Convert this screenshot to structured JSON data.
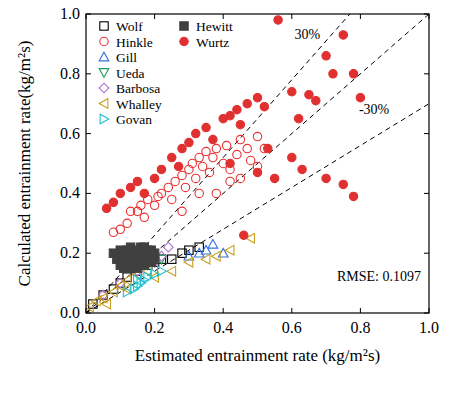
{
  "chart_data": {
    "type": "scatter",
    "x_label": "Estimated entrainment rate (kg/m²s)",
    "y_label": "Calculated entrainment rate(kg/m²s)",
    "xlim": [
      0,
      1
    ],
    "ylim": [
      0,
      1
    ],
    "xticks": [
      {
        "value": 0,
        "label": "0.0"
      },
      {
        "value": 0.2,
        "label": "0.2"
      },
      {
        "value": 0.4,
        "label": "0.4"
      },
      {
        "value": 0.6,
        "label": "0.6"
      },
      {
        "value": 0.8,
        "label": "0.8"
      },
      {
        "value": 1,
        "label": "1.0"
      }
    ],
    "yticks": [
      {
        "value": 0,
        "label": "0.0"
      },
      {
        "value": 0.2,
        "label": "0.2"
      },
      {
        "value": 0.4,
        "label": "0.4"
      },
      {
        "value": 0.6,
        "label": "0.6"
      },
      {
        "value": 0.8,
        "label": "0.8"
      },
      {
        "value": 1,
        "label": "1.0"
      }
    ],
    "legend": "upper left",
    "reference_lines": [
      {
        "slope": 1.3,
        "label": "30%"
      },
      {
        "slope": 1
      },
      {
        "slope": 0.7,
        "label": "-30%"
      }
    ],
    "annotations": [
      "RMSE: 0.1097"
    ],
    "series": [
      {
        "name": "Wolf",
        "color": "#000000",
        "marker": "square",
        "x": [
          0.02,
          0.05,
          0.08,
          0.1,
          0.12,
          0.15,
          0.18,
          0.2,
          0.22,
          0.25,
          0.28,
          0.3,
          0.33
        ],
        "values": [
          0.03,
          0.06,
          0.08,
          0.1,
          0.12,
          0.14,
          0.16,
          0.17,
          0.18,
          0.18,
          0.2,
          0.21,
          0.22
        ]
      },
      {
        "name": "Hinkle",
        "color": "#e83030",
        "marker": "circle",
        "x": [
          0.08,
          0.1,
          0.12,
          0.13,
          0.15,
          0.16,
          0.17,
          0.18,
          0.2,
          0.21,
          0.22,
          0.24,
          0.25,
          0.26,
          0.28,
          0.29,
          0.3,
          0.31,
          0.32,
          0.33,
          0.34,
          0.35,
          0.36,
          0.37,
          0.38,
          0.4,
          0.41,
          0.42,
          0.44,
          0.45,
          0.47,
          0.48,
          0.5,
          0.52,
          0.38,
          0.42,
          0.45,
          0.5,
          0.28,
          0.33
        ],
        "values": [
          0.27,
          0.28,
          0.3,
          0.34,
          0.34,
          0.36,
          0.32,
          0.38,
          0.36,
          0.39,
          0.4,
          0.42,
          0.38,
          0.44,
          0.46,
          0.42,
          0.48,
          0.5,
          0.45,
          0.52,
          0.49,
          0.54,
          0.47,
          0.52,
          0.55,
          0.5,
          0.56,
          0.48,
          0.53,
          0.58,
          0.55,
          0.51,
          0.59,
          0.55,
          0.4,
          0.44,
          0.45,
          0.49,
          0.34,
          0.4
        ]
      },
      {
        "name": "Gill",
        "color": "#3070e0",
        "marker": "triangle-up",
        "x": [
          0.3,
          0.33,
          0.35,
          0.37,
          0.4
        ],
        "values": [
          0.19,
          0.2,
          0.21,
          0.23,
          0.2
        ]
      },
      {
        "name": "Ueda",
        "color": "#20a060",
        "marker": "triangle-down",
        "x": [
          0.18,
          0.2,
          0.22
        ],
        "values": [
          0.16,
          0.17,
          0.18
        ]
      },
      {
        "name": "Barbosa",
        "color": "#b070d0",
        "marker": "diamond",
        "x": [
          0.05,
          0.1,
          0.15,
          0.2,
          0.22,
          0.24
        ],
        "values": [
          0.06,
          0.1,
          0.14,
          0.17,
          0.19,
          0.22
        ]
      },
      {
        "name": "Whalley",
        "color": "#c8a020",
        "marker": "triangle-left",
        "x": [
          0.01,
          0.03,
          0.05,
          0.08,
          0.1,
          0.12,
          0.15,
          0.18,
          0.2,
          0.25,
          0.3,
          0.35,
          0.38,
          0.42,
          0.48,
          0.12,
          0.06
        ],
        "values": [
          0.02,
          0.04,
          0.05,
          0.07,
          0.09,
          0.11,
          0.13,
          0.14,
          0.12,
          0.14,
          0.17,
          0.18,
          0.19,
          0.21,
          0.25,
          0.08,
          0.03
        ]
      },
      {
        "name": "Govan",
        "color": "#20c0d0",
        "marker": "triangle-right",
        "x": [
          0.12,
          0.14,
          0.15,
          0.16,
          0.17,
          0.18,
          0.2,
          0.22,
          0.15
        ],
        "values": [
          0.07,
          0.08,
          0.09,
          0.1,
          0.11,
          0.12,
          0.13,
          0.14,
          0.11
        ]
      },
      {
        "name": "Hewitt",
        "color": "#404040",
        "marker": "square-filled",
        "x": [
          0.08,
          0.09,
          0.1,
          0.11,
          0.12,
          0.12,
          0.13,
          0.13,
          0.14,
          0.14,
          0.15,
          0.15,
          0.16,
          0.16,
          0.17,
          0.17,
          0.18,
          0.18,
          0.19,
          0.19,
          0.2,
          0.2,
          0.11,
          0.1,
          0.13,
          0.15,
          0.17,
          0.19
        ],
        "values": [
          0.2,
          0.18,
          0.16,
          0.19,
          0.21,
          0.17,
          0.22,
          0.18,
          0.2,
          0.16,
          0.21,
          0.18,
          0.22,
          0.17,
          0.2,
          0.16,
          0.21,
          0.18,
          0.19,
          0.17,
          0.2,
          0.18,
          0.15,
          0.21,
          0.15,
          0.15,
          0.22,
          0.21
        ]
      },
      {
        "name": "Wurtz",
        "color": "#e03030",
        "marker": "circle-filled",
        "x": [
          0.06,
          0.08,
          0.1,
          0.13,
          0.15,
          0.17,
          0.2,
          0.22,
          0.25,
          0.27,
          0.28,
          0.3,
          0.32,
          0.35,
          0.37,
          0.4,
          0.42,
          0.44,
          0.45,
          0.47,
          0.5,
          0.52,
          0.56,
          0.6,
          0.62,
          0.65,
          0.67,
          0.7,
          0.72,
          0.75,
          0.78,
          0.8,
          0.55,
          0.6,
          0.63,
          0.7,
          0.75,
          0.78,
          0.46,
          0.5,
          0.53,
          0.42
        ],
        "values": [
          0.35,
          0.37,
          0.4,
          0.42,
          0.44,
          0.4,
          0.45,
          0.48,
          0.52,
          0.49,
          0.55,
          0.57,
          0.6,
          0.62,
          0.58,
          0.65,
          0.66,
          0.68,
          0.63,
          0.7,
          0.72,
          0.69,
          0.98,
          0.74,
          0.65,
          0.73,
          0.71,
          0.86,
          0.8,
          0.93,
          0.8,
          0.72,
          0.45,
          0.52,
          0.48,
          0.45,
          0.43,
          0.39,
          0.26,
          0.47,
          0.55,
          0.5
        ]
      }
    ]
  }
}
